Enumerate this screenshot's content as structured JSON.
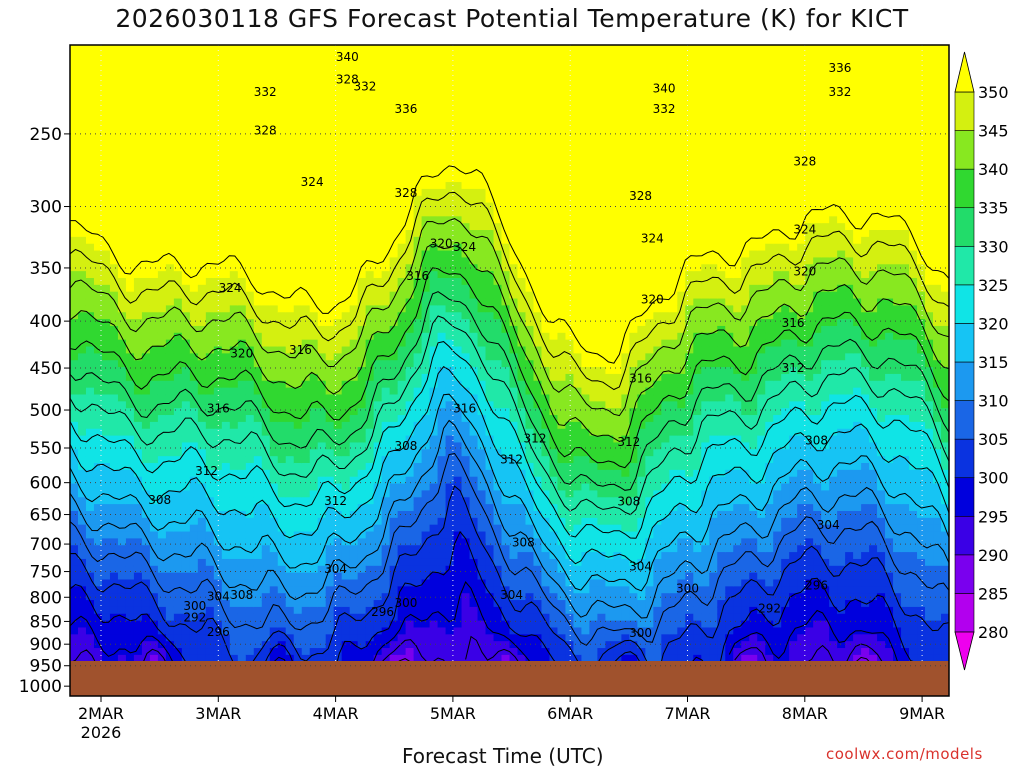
{
  "header": {
    "title": "2026030118 GFS Forecast Potential Temperature (K) for KICT"
  },
  "footer": {
    "xlabel": "Forecast Time (UTC)",
    "credit": "coolwx.com/models"
  },
  "chart_data": {
    "type": "contour",
    "title": "2026030118 GFS Forecast Potential Temperature (K) for KICT",
    "xlabel": "Forecast Time (UTC)",
    "ylabel": "",
    "x_ticks": [
      "2MAR",
      "3MAR",
      "4MAR",
      "5MAR",
      "6MAR",
      "7MAR",
      "8MAR",
      "9MAR"
    ],
    "x_year_label": "2026",
    "y_ticks": [
      250,
      300,
      350,
      400,
      450,
      500,
      550,
      600,
      650,
      700,
      750,
      800,
      850,
      900,
      950,
      1000
    ],
    "y_range_hPa": [
      200,
      1025
    ],
    "colorbar": {
      "levels": [
        280,
        285,
        290,
        295,
        300,
        305,
        310,
        315,
        320,
        325,
        330,
        335,
        340,
        345,
        350
      ],
      "colors": [
        "#ee00ee",
        "#b200ee",
        "#7a00ee",
        "#3a00e6",
        "#0000dd",
        "#0a33e0",
        "#1a66e6",
        "#1c99f0",
        "#16c4f4",
        "#10e4e6",
        "#20e8a8",
        "#22dc6a",
        "#30d830",
        "#88e820",
        "#d4f010",
        "#ffff00"
      ]
    },
    "terrain_color": "#a0522d",
    "contour_labels": [
      {
        "time_day": 1.4,
        "p": 225,
        "value": 332
      },
      {
        "time_day": 1.4,
        "p": 248,
        "value": 328
      },
      {
        "time_day": 2.1,
        "p": 218,
        "value": 328
      },
      {
        "time_day": 2.25,
        "p": 222,
        "value": 332
      },
      {
        "time_day": 2.1,
        "p": 206,
        "value": 340
      },
      {
        "time_day": 2.6,
        "p": 235,
        "value": 336
      },
      {
        "time_day": 2.6,
        "p": 290,
        "value": 328
      },
      {
        "time_day": 1.8,
        "p": 282,
        "value": 324
      },
      {
        "time_day": 1.1,
        "p": 368,
        "value": 324
      },
      {
        "time_day": 2.9,
        "p": 329,
        "value": 320
      },
      {
        "time_day": 3.1,
        "p": 332,
        "value": 324
      },
      {
        "time_day": 2.7,
        "p": 357,
        "value": 316
      },
      {
        "time_day": 1.2,
        "p": 434,
        "value": 320
      },
      {
        "time_day": 1.7,
        "p": 430,
        "value": 316
      },
      {
        "time_day": 1.0,
        "p": 498,
        "value": 316
      },
      {
        "time_day": 0.9,
        "p": 583,
        "value": 312
      },
      {
        "time_day": 0.5,
        "p": 627,
        "value": 308
      },
      {
        "time_day": 1.0,
        "p": 798,
        "value": 304
      },
      {
        "time_day": 1.2,
        "p": 795,
        "value": 308
      },
      {
        "time_day": 0.8,
        "p": 818,
        "value": 300
      },
      {
        "time_day": 0.8,
        "p": 842,
        "value": 292
      },
      {
        "time_day": 1.0,
        "p": 873,
        "value": 296
      },
      {
        "time_day": 2.0,
        "p": 628,
        "value": 312
      },
      {
        "time_day": 2.6,
        "p": 547,
        "value": 308
      },
      {
        "time_day": 2.0,
        "p": 745,
        "value": 304
      },
      {
        "time_day": 2.4,
        "p": 830,
        "value": 296
      },
      {
        "time_day": 2.6,
        "p": 812,
        "value": 300
      },
      {
        "time_day": 3.1,
        "p": 498,
        "value": 316
      },
      {
        "time_day": 3.5,
        "p": 566,
        "value": 312
      },
      {
        "time_day": 3.6,
        "p": 697,
        "value": 308
      },
      {
        "time_day": 3.5,
        "p": 795,
        "value": 304
      },
      {
        "time_day": 3.7,
        "p": 537,
        "value": 312
      },
      {
        "time_day": 4.8,
        "p": 223,
        "value": 340
      },
      {
        "time_day": 4.8,
        "p": 235,
        "value": 332
      },
      {
        "time_day": 4.6,
        "p": 292,
        "value": 328
      },
      {
        "time_day": 4.7,
        "p": 325,
        "value": 324
      },
      {
        "time_day": 4.7,
        "p": 379,
        "value": 320
      },
      {
        "time_day": 4.6,
        "p": 462,
        "value": 316
      },
      {
        "time_day": 4.5,
        "p": 542,
        "value": 312
      },
      {
        "time_day": 4.5,
        "p": 629,
        "value": 308
      },
      {
        "time_day": 4.6,
        "p": 741,
        "value": 304
      },
      {
        "time_day": 4.6,
        "p": 875,
        "value": 300
      },
      {
        "time_day": 6.3,
        "p": 212,
        "value": 336
      },
      {
        "time_day": 6.3,
        "p": 225,
        "value": 332
      },
      {
        "time_day": 6.0,
        "p": 268,
        "value": 328
      },
      {
        "time_day": 6.0,
        "p": 318,
        "value": 324
      },
      {
        "time_day": 6.0,
        "p": 353,
        "value": 320
      },
      {
        "time_day": 5.9,
        "p": 402,
        "value": 316
      },
      {
        "time_day": 5.9,
        "p": 450,
        "value": 312
      },
      {
        "time_day": 6.1,
        "p": 540,
        "value": 308
      },
      {
        "time_day": 6.2,
        "p": 667,
        "value": 304
      },
      {
        "time_day": 5.0,
        "p": 783,
        "value": 300
      },
      {
        "time_day": 5.7,
        "p": 823,
        "value": 292
      },
      {
        "time_day": 6.1,
        "p": 777,
        "value": 296
      }
    ]
  }
}
